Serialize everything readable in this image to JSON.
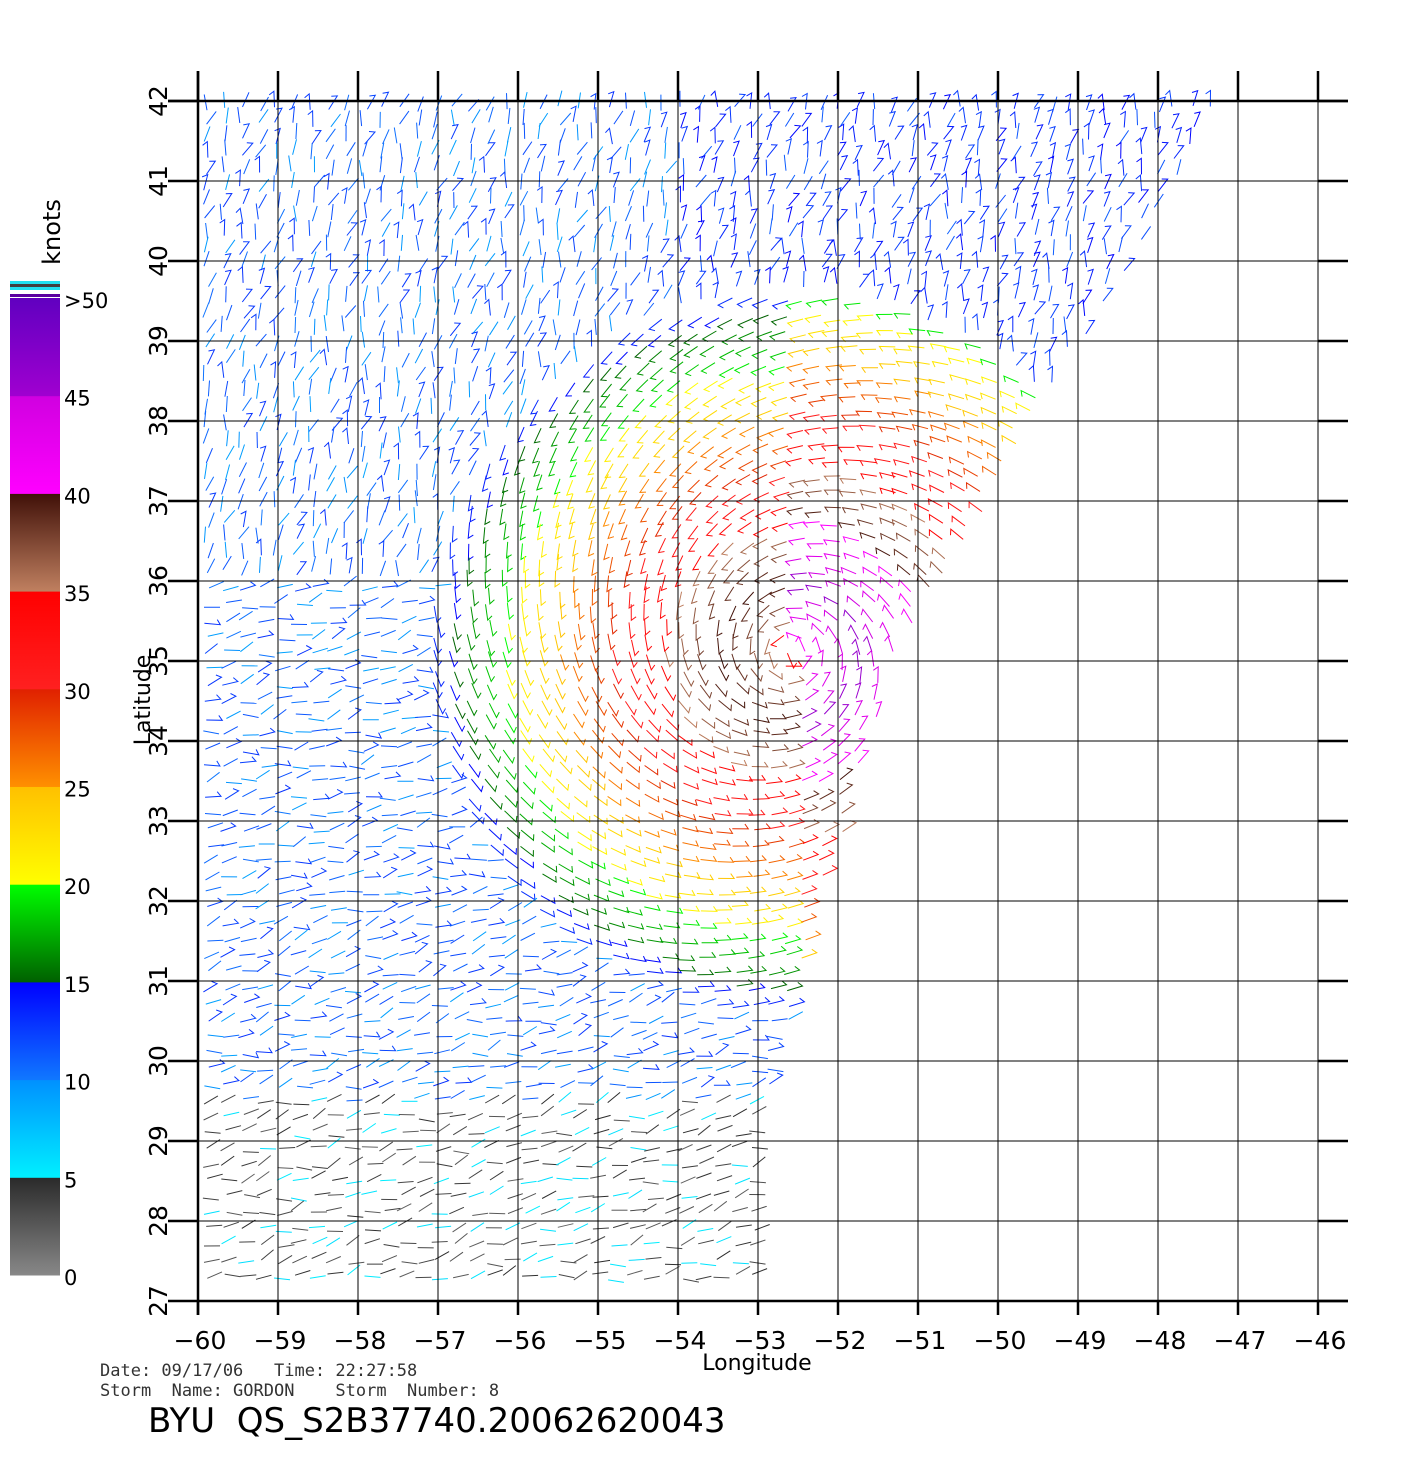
{
  "chart_data": {
    "type": "wind-vector-map",
    "xlabel": "Longitude",
    "ylabel": "Latitude",
    "xlim": [
      -60,
      -46
    ],
    "ylim": [
      27,
      42
    ],
    "x_ticks": [
      -60,
      -59,
      -58,
      -57,
      -56,
      -55,
      -54,
      -53,
      -52,
      -51,
      -50,
      -49,
      -48,
      -47,
      -46
    ],
    "y_ticks": [
      27,
      28,
      29,
      30,
      31,
      32,
      33,
      34,
      35,
      36,
      37,
      38,
      39,
      40,
      41,
      42
    ],
    "grid": true,
    "colorbar": {
      "title": "knots",
      "segments": [
        {
          "from": 0,
          "to": 5,
          "color_bottom": "#888888",
          "color_top": "#2a2a2a"
        },
        {
          "from": 5,
          "to": 10,
          "color_bottom": "#00f0ff",
          "color_top": "#0090ff"
        },
        {
          "from": 10,
          "to": 15,
          "color_bottom": "#1078ff",
          "color_top": "#0000ff"
        },
        {
          "from": 15,
          "to": 20,
          "color_bottom": "#006000",
          "color_top": "#00ff00"
        },
        {
          "from": 20,
          "to": 25,
          "color_bottom": "#ffff00",
          "color_top": "#ffc000"
        },
        {
          "from": 25,
          "to": 30,
          "color_bottom": "#ff9000",
          "color_top": "#e02000"
        },
        {
          "from": 30,
          "to": 35,
          "color_bottom": "#ff2020",
          "color_top": "#ff0000"
        },
        {
          "from": 35,
          "to": 40,
          "color_bottom": "#c08060",
          "color_top": "#401008"
        },
        {
          "from": 40,
          "to": 45,
          "color_bottom": "#ff00ff",
          "color_top": "#d000e0"
        },
        {
          "from": 45,
          "to": 50,
          "color_bottom": "#a000d0",
          "color_top": "#6000c0"
        }
      ],
      "labels": [
        "0",
        "5",
        "10",
        "15",
        "20",
        "25",
        "30",
        "35",
        "40",
        "45",
        ">50"
      ]
    },
    "storm_center": {
      "lon": -52.6,
      "lat": 35.1
    },
    "swath_east_edge": [
      [
        -47.2,
        42
      ],
      [
        -51.3,
        35
      ],
      [
        -52.1,
        32.5
      ],
      [
        -53.0,
        29
      ],
      [
        -53.0,
        27
      ]
    ]
  },
  "info": {
    "date_line": "Date: 09/17/06   Time: 22:27:58",
    "storm_line": "Storm  Name: GORDON    Storm  Number: 8",
    "product_id": "BYU  QS_S2B37740.20062620043"
  }
}
